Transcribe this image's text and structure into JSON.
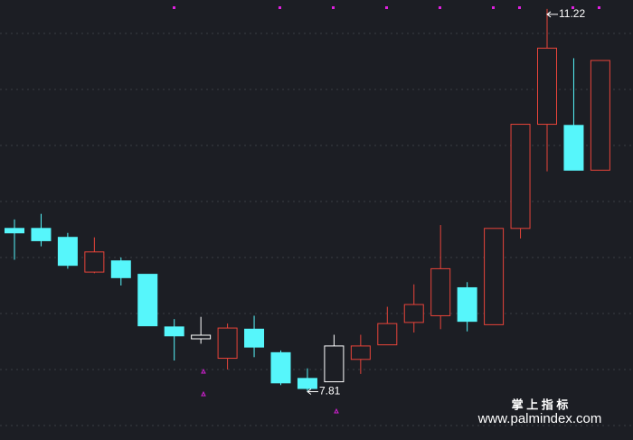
{
  "chart_data": {
    "type": "candlestick",
    "categories": [
      null,
      null,
      null,
      null,
      null,
      null,
      null,
      null,
      null,
      null,
      null,
      null,
      null,
      null,
      null,
      null,
      null,
      null,
      null,
      null,
      null,
      null,
      null
    ],
    "open": [
      9.26,
      9.26,
      9.18,
      8.87,
      8.97,
      8.85,
      8.38,
      8.29,
      8.1,
      8.36,
      8.15,
      7.92,
      7.89,
      8.09,
      8.22,
      8.42,
      8.48,
      8.73,
      8.4,
      9.26,
      10.19,
      10.18,
      9.78
    ],
    "high": [
      9.34,
      9.39,
      9.22,
      9.18,
      9.0,
      8.85,
      8.45,
      8.47,
      8.41,
      8.48,
      8.17,
      8.01,
      8.31,
      8.31,
      8.56,
      8.76,
      9.29,
      8.78,
      9.26,
      10.19,
      11.22,
      10.78,
      10.76
    ],
    "low": [
      8.98,
      9.1,
      8.9,
      8.86,
      8.75,
      8.39,
      8.08,
      8.23,
      8.0,
      8.11,
      7.86,
      7.81,
      7.89,
      7.96,
      8.22,
      8.33,
      8.36,
      8.34,
      8.4,
      9.17,
      9.77,
      9.78,
      9.78
    ],
    "close": [
      9.22,
      9.15,
      8.93,
      9.05,
      8.82,
      8.39,
      8.3,
      8.29,
      8.37,
      8.2,
      7.88,
      7.83,
      8.21,
      8.21,
      8.41,
      8.58,
      8.9,
      8.43,
      9.26,
      10.19,
      10.87,
      9.78,
      10.76
    ],
    "colors": [
      "#56f6fb",
      "#56f6fb",
      "#56f6fb",
      "#e8443a",
      "#56f6fb",
      "#56f6fb",
      "#56f6fb",
      "#ffffff",
      "#e8443a",
      "#56f6fb",
      "#56f6fb",
      "#56f6fb",
      "#ffffff",
      "#e8443a",
      "#e8443a",
      "#e8443a",
      "#e8443a",
      "#56f6fb",
      "#e8443a",
      "#e8443a",
      "#e8443a",
      "#56f6fb",
      "#e8443a"
    ],
    "filled": [
      true,
      true,
      true,
      false,
      true,
      true,
      true,
      false,
      false,
      true,
      true,
      true,
      false,
      false,
      false,
      false,
      false,
      true,
      false,
      false,
      false,
      true,
      false
    ],
    "ylim": [
      7.37,
      11.3
    ],
    "annotations": [
      {
        "text": "11.22",
        "at": "high"
      },
      {
        "text": "7.81",
        "at": "low"
      }
    ]
  },
  "watermark": {
    "title": "掌 上 指 标",
    "url": "www.palmindex.com"
  }
}
